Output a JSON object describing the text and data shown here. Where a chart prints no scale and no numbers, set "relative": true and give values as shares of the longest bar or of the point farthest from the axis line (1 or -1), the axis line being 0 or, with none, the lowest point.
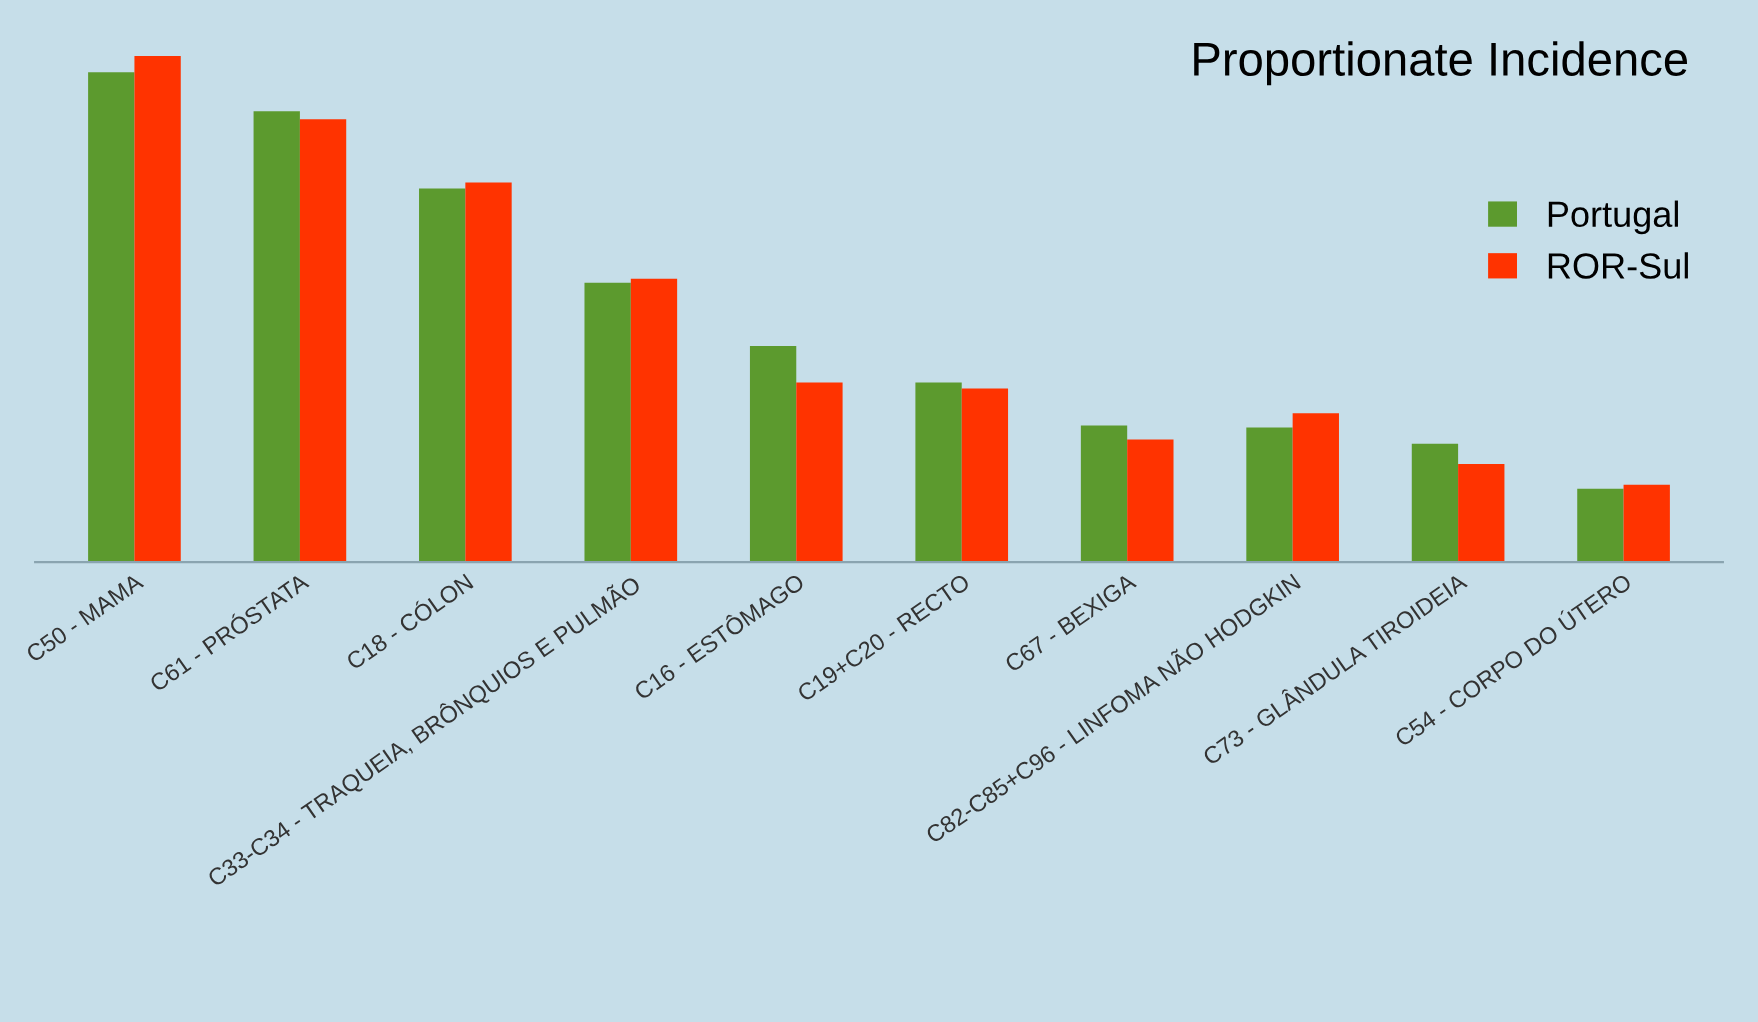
{
  "chart_data": {
    "type": "bar",
    "title": "Proportionate Incidence",
    "relative": true,
    "legend": "right",
    "categories": [
      "C50 - MAMA",
      "C61 - PRÓSTATA",
      "C18 - CÓLON",
      "C33-C34 - TRAQUEIA, BRÔNQUIOS E PULMÃO",
      "C16 - ESTÔMAGO",
      "C19+C20 - RECTO",
      "C67 - BEXIGA",
      "C82-C85+C96 - LINFOMA NÃO HODGKIN",
      "C73 - GLÂNDULA TIROIDEIA",
      "C54 - CORPO DO ÚTERO"
    ],
    "series": [
      {
        "name": "Portugal",
        "color": "#5c9a2e",
        "values": [
          0.968,
          0.891,
          0.738,
          0.552,
          0.427,
          0.355,
          0.27,
          0.266,
          0.234,
          0.145
        ]
      },
      {
        "name": "ROR-Sul",
        "color": "#ff3300",
        "values": [
          1.0,
          0.875,
          0.75,
          0.56,
          0.355,
          0.343,
          0.242,
          0.294,
          0.194,
          0.153
        ]
      }
    ]
  }
}
